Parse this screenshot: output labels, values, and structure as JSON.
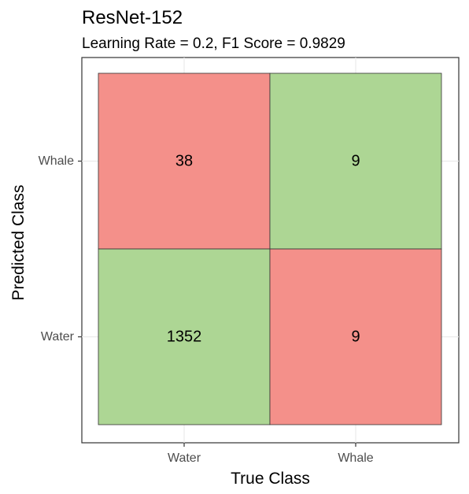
{
  "chart_data": {
    "type": "heatmap",
    "title": "ResNet-152",
    "subtitle": "Learning Rate = 0.2, F1 Score = 0.9829",
    "xlabel": "True Class",
    "ylabel": "Predicted Class",
    "x_categories": [
      "Water",
      "Whale"
    ],
    "y_categories": [
      "Water",
      "Whale"
    ],
    "cells": [
      {
        "x": "Water",
        "y": "Whale",
        "value": 38,
        "color": "#f4908a"
      },
      {
        "x": "Whale",
        "y": "Whale",
        "value": 9,
        "color": "#add694"
      },
      {
        "x": "Water",
        "y": "Water",
        "value": 1352,
        "color": "#add694"
      },
      {
        "x": "Whale",
        "y": "Water",
        "value": 9,
        "color": "#f4908a"
      }
    ],
    "grid": true,
    "legend": "none"
  }
}
